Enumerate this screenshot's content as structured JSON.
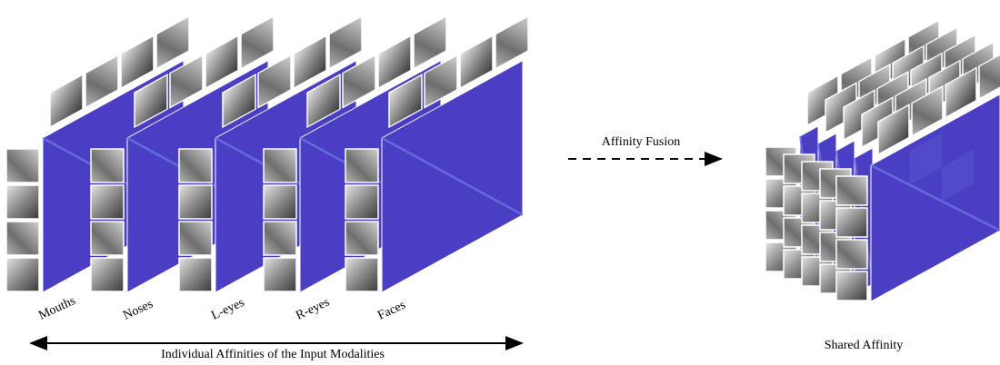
{
  "left": {
    "modalities": [
      "Mouths",
      "Noses",
      "L-eyes",
      "R-eyes",
      "Faces"
    ],
    "caption": "Individual Affinities of the Input Modalities"
  },
  "fusion_label": "Affinity Fusion",
  "right": {
    "caption": "Shared Affinity"
  }
}
